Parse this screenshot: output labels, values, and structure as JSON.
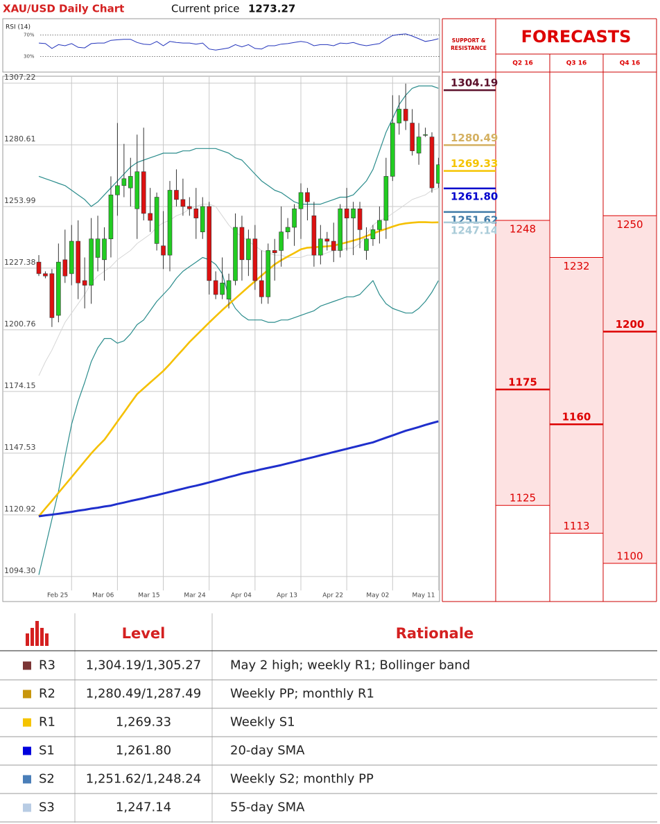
{
  "header": {
    "title": "XAU/USD Daily Chart",
    "current_price_label": "Current price",
    "current_price": 1273.27
  },
  "chart_data": [
    {
      "type": "candlestick",
      "categories": [
        null,
        null,
        null,
        null,
        null,
        "Feb 25",
        null,
        null,
        null,
        null,
        null,
        null,
        "Mar 06",
        null,
        null,
        null,
        null,
        null,
        null,
        "Mar 15",
        null,
        null,
        null,
        null,
        null,
        null,
        "Mar 24",
        null,
        null,
        null,
        null,
        null,
        null,
        "Apr 04",
        null,
        null,
        null,
        null,
        null,
        null,
        "Apr 13",
        null,
        null,
        null,
        null,
        null,
        null,
        "Apr 22",
        null,
        null,
        null,
        null,
        null,
        null,
        "May 02",
        null,
        null,
        null,
        null,
        null,
        null,
        "May 11"
      ],
      "open": [
        1230,
        1225,
        1225,
        1207,
        1231,
        1225,
        1239,
        1222,
        1220,
        1232,
        1231,
        1240,
        1259,
        1263,
        1262,
        1253,
        1269,
        1251,
        1238,
        1237,
        1233,
        1261,
        1257,
        1254,
        1253,
        1243,
        1254,
        1222,
        1216,
        1214,
        1222,
        1245,
        1231,
        1240,
        1222,
        1215,
        1235,
        1235,
        1243,
        1245,
        1253,
        1260,
        1250,
        1233,
        1240,
        1239,
        1235,
        1253,
        1249,
        1253,
        1235,
        1240,
        1244,
        1248,
        1267,
        1290,
        1296,
        1290,
        1277,
        1285,
        1284,
        1264
      ],
      "high": [
        1233,
        1226,
        1227,
        1238,
        1244,
        1246,
        1248,
        1232,
        1249,
        1250,
        1245,
        1267,
        1290,
        1281,
        1275,
        1285,
        1288,
        1262,
        1260,
        1252,
        1265,
        1270,
        1266,
        1258,
        1262,
        1258,
        1256,
        1226,
        1232,
        1225,
        1251,
        1250,
        1244,
        1246,
        1235,
        1238,
        1240,
        1254,
        1249,
        1255,
        1264,
        1262,
        1256,
        1246,
        1243,
        1247,
        1255,
        1262,
        1256,
        1256,
        1245,
        1246,
        1254,
        1275,
        1302,
        1302,
        1307,
        1296,
        1290,
        1288,
        1286,
        1275
      ],
      "low": [
        1224,
        1223,
        1202,
        1204,
        1221,
        1220,
        1214,
        1210,
        1212,
        1226,
        1222,
        1232,
        1250,
        1258,
        1254,
        1240,
        1248,
        1243,
        1235,
        1227,
        1226,
        1254,
        1250,
        1250,
        1240,
        1240,
        1216,
        1214,
        1214,
        1210,
        1220,
        1222,
        1224,
        1218,
        1212,
        1212,
        1222,
        1228,
        1240,
        1237,
        1240,
        1248,
        1228,
        1229,
        1235,
        1230,
        1232,
        1235,
        1233,
        1236,
        1231,
        1237,
        1238,
        1240,
        1265,
        1285,
        1287,
        1276,
        1272,
        1284,
        1260,
        1262
      ],
      "close": [
        1225,
        1224,
        1206,
        1230,
        1224,
        1239,
        1221,
        1220,
        1240,
        1240,
        1240,
        1259,
        1263,
        1266,
        1267,
        1269,
        1251,
        1248,
        1258,
        1233,
        1261,
        1257,
        1254,
        1253,
        1249,
        1254,
        1222,
        1216,
        1221,
        1222,
        1245,
        1231,
        1240,
        1222,
        1215,
        1235,
        1234,
        1243,
        1245,
        1253,
        1260,
        1256,
        1233,
        1240,
        1239,
        1235,
        1253,
        1249,
        1253,
        1244,
        1240,
        1244,
        1248,
        1267,
        1290,
        1296,
        1291,
        1278,
        1284,
        1285,
        1262,
        1272
      ],
      "series": [
        {
          "color": "#2a8c8c",
          "width": 1.2,
          "values": [
            1267,
            1266,
            1265,
            1264,
            1263,
            1261,
            1259,
            1257,
            1254,
            1256,
            1259,
            1262,
            1265,
            1268,
            1271,
            1273,
            1274,
            1275,
            1276,
            1277,
            1277,
            1277,
            1278,
            1278,
            1279,
            1279,
            1279,
            1279,
            1278,
            1277,
            1275,
            1274,
            1271,
            1268,
            1265,
            1263,
            1261,
            1260,
            1258,
            1256,
            1255,
            1255,
            1255,
            1255,
            1256,
            1257,
            1258,
            1258,
            1259,
            1262,
            1265,
            1270,
            1278,
            1286,
            1292,
            1298,
            1302,
            1305,
            1306,
            1306,
            1306,
            1305
          ]
        },
        {
          "color": "#d6d6d6",
          "width": 1,
          "values": [
            1181,
            1187,
            1192,
            1198,
            1204,
            1208,
            1212,
            1216,
            1221,
            1224,
            1226,
            1228,
            1231,
            1233,
            1235,
            1238,
            1240,
            1242,
            1245,
            1247,
            1248,
            1250,
            1251,
            1253,
            1254,
            1255,
            1255,
            1254,
            1250,
            1246,
            1243,
            1241,
            1239,
            1237,
            1235,
            1234,
            1233,
            1233,
            1232,
            1232,
            1232,
            1233,
            1233,
            1233,
            1234,
            1235,
            1235,
            1236,
            1236,
            1238,
            1242,
            1246,
            1248,
            1249,
            1251,
            1253,
            1255,
            1257,
            1258,
            1259,
            1261,
            1261.8
          ]
        },
        {
          "color": "#2a8c8c",
          "width": 1.2,
          "values": [
            1095,
            1107,
            1119,
            1131,
            1146,
            1160,
            1170,
            1178,
            1187,
            1193,
            1197,
            1197,
            1195,
            1196,
            1199,
            1203,
            1205,
            1209,
            1213,
            1216,
            1219,
            1223,
            1226,
            1228,
            1230,
            1232,
            1231,
            1229,
            1225,
            1215,
            1210,
            1207,
            1205,
            1205,
            1205,
            1204,
            1204,
            1205,
            1205,
            1206,
            1207,
            1208,
            1209,
            1211,
            1212,
            1213,
            1214,
            1215,
            1215,
            1216,
            1219,
            1222,
            1216,
            1212,
            1210,
            1209,
            1208,
            1208,
            1210,
            1213,
            1217,
            1222
          ]
        },
        {
          "color": "#f5c000",
          "width": 2.6,
          "values": [
            1120.3,
            1123.7,
            1127.0,
            1130.4,
            1133.8,
            1137.2,
            1140.6,
            1144.0,
            1147.4,
            1150.5,
            1153.3,
            1157.2,
            1161.2,
            1165.1,
            1169.1,
            1173.0,
            1175.5,
            1178.0,
            1180.5,
            1183.0,
            1186.0,
            1189.2,
            1192.3,
            1195.5,
            1198.3,
            1201.1,
            1203.9,
            1206.6,
            1209.3,
            1211.8,
            1214.3,
            1216.8,
            1219.3,
            1221.7,
            1224.2,
            1226.6,
            1229.0,
            1230.8,
            1232.4,
            1233.9,
            1235.5,
            1236.2,
            1236.4,
            1236.6,
            1236.8,
            1237.1,
            1237.8,
            1238.5,
            1239.3,
            1240.1,
            1241.2,
            1242.3,
            1243.4,
            1244.3,
            1245.3,
            1246.2,
            1246.7,
            1247.0,
            1247.2,
            1247.2,
            1247.1,
            1247.14
          ]
        },
        {
          "color": "#1f2fcc",
          "width": 3,
          "values": [
            1120.3,
            1120.7,
            1121.0,
            1121.4,
            1121.8,
            1122.2,
            1122.7,
            1123.1,
            1123.6,
            1124.0,
            1124.5,
            1124.9,
            1125.6,
            1126.2,
            1126.9,
            1127.5,
            1128.1,
            1128.8,
            1129.4,
            1130.1,
            1130.8,
            1131.5,
            1132.2,
            1132.9,
            1133.5,
            1134.2,
            1134.9,
            1135.7,
            1136.4,
            1137.2,
            1137.9,
            1138.7,
            1139.3,
            1139.9,
            1140.6,
            1141.2,
            1141.8,
            1142.4,
            1143.1,
            1143.8,
            1144.5,
            1145.2,
            1145.9,
            1146.6,
            1147.3,
            1148.0,
            1148.7,
            1149.4,
            1150.1,
            1150.8,
            1151.5,
            1152.2,
            1153.2,
            1154.2,
            1155.2,
            1156.2,
            1157.2,
            1158.0,
            1158.8,
            1159.7,
            1160.5,
            1161.3
          ]
        }
      ],
      "up_color": "#22cc22",
      "down_color": "#dd1111",
      "ylim": [
        1083.5,
        1310.2
      ],
      "yticks": [
        1307.22,
        1280.61,
        1253.99,
        1227.38,
        1200.76,
        1174.15,
        1147.53,
        1120.92,
        {
          "value": 1094.3,
          "label": "1094.30"
        }
      ],
      "grid": true,
      "support_resistance": {
        "title_lines": [
          "SUPPORT &",
          "RESISTANCE"
        ],
        "values": [
          1304.19,
          1280.49,
          1269.33,
          1261.8,
          1251.62,
          1247.14
        ],
        "value_labels": [
          "1304.19",
          "1280.49",
          "1269.33",
          "1261.80",
          "1251.62",
          "1247.14"
        ],
        "colors": [
          "#5b0f2a",
          "#d4b060",
          "#f5c400",
          "#0000cc",
          "#3f7aa6",
          "#a9cbd8"
        ]
      },
      "forecasts": {
        "title": "FORECASTS",
        "quarters": [
          "Q2 16",
          "Q3 16",
          "Q4 16"
        ],
        "high": [
          1248,
          1232,
          1250
        ],
        "mid": [
          1175,
          1160,
          1200
        ],
        "low": [
          1125,
          1113,
          1100
        ],
        "color": "#dd0000",
        "fill": "#fde2e2"
      }
    },
    {
      "type": "line",
      "title": "RSI (14)",
      "color": "#2233bb",
      "ylim": [
        14,
        86
      ],
      "yticks": [
        {
          "value": 70,
          "label": "70%"
        },
        {
          "value": 30,
          "label": "30%"
        }
      ],
      "values": [
        55,
        54,
        45,
        52,
        50,
        54,
        47,
        46,
        54,
        55,
        55,
        60,
        61,
        62,
        62,
        56,
        53,
        52,
        58,
        50,
        58,
        56,
        55,
        55,
        53,
        55,
        44,
        42,
        44,
        46,
        52,
        48,
        52,
        45,
        44,
        50,
        50,
        53,
        54,
        56,
        58,
        56,
        50,
        52,
        52,
        50,
        55,
        54,
        56,
        52,
        50,
        52,
        54,
        62,
        69,
        71,
        72,
        68,
        63,
        58,
        60,
        63
      ]
    }
  ],
  "table": {
    "header": [
      "Level",
      "Rationale"
    ],
    "rows": [
      [
        "R3",
        "1,304.19/1,305.27",
        "May 2 high; weekly R1; Bollinger band"
      ],
      [
        "R2",
        "1,280.49/1,287.49",
        "Weekly PP; monthly R1"
      ],
      [
        "R1",
        "1,269.33",
        "Weekly S1"
      ],
      [
        "S1",
        "1,261.80",
        "20-day SMA"
      ],
      [
        "S2",
        "1,251.62/1,248.24",
        "Weekly S2; monthly PP"
      ],
      [
        "S3",
        "1,247.14",
        "55-day SMA"
      ]
    ],
    "colors": [
      "#7b3535",
      "#c8960c",
      "#f5c400",
      "#0000dd",
      "#4a7eb8",
      "#b8cce4"
    ]
  }
}
